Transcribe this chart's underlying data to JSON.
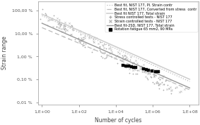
{
  "title": "",
  "xlabel": "Number of cycles",
  "ylabel": "Strain range",
  "background_color": "#ffffff",
  "line1_label": "Best fit, NIST 177, Pl. Strain contr",
  "line1_color": "#bbbbbb",
  "line1_x": [
    1,
    100000000.0
  ],
  "line1_y": [
    0.6,
    0.0008
  ],
  "line2_label": "Best fit, NIST 177, Converted from stress  contr",
  "line2_color": "#bbbbbb",
  "line2_x": [
    1,
    100000000.0
  ],
  "line2_y": [
    0.18,
    0.00035
  ],
  "line3_label": "Best fit NIST 177, Total strain",
  "line3_color": "#cccccc",
  "line3_x": [
    1,
    100000000.0
  ],
  "line3_y": [
    0.7,
    0.001
  ],
  "line4_label": "Best fit-2SD, NIST 177, Total strain",
  "line4_color": "#999999",
  "line4_x": [
    1,
    100000000.0
  ],
  "line4_y": [
    0.28,
    0.00042
  ],
  "yticks_labels": [
    "0,01 %",
    "0,10 %",
    "1,00 %",
    "10,00 %",
    "100,00 %"
  ],
  "yticks_vals": [
    0.0001,
    0.001,
    0.01,
    0.1,
    1.0
  ],
  "xticks_labels": [
    "1,E+00",
    "1,E+02",
    "1,E+04",
    "1,E+06",
    "1,E+08"
  ],
  "xticks_vals": [
    1,
    100,
    10000,
    1000000,
    100000000
  ],
  "rotation_label": "Rotation fatigue 65 mm2, 90 MPa",
  "rotation_color": "#000000"
}
